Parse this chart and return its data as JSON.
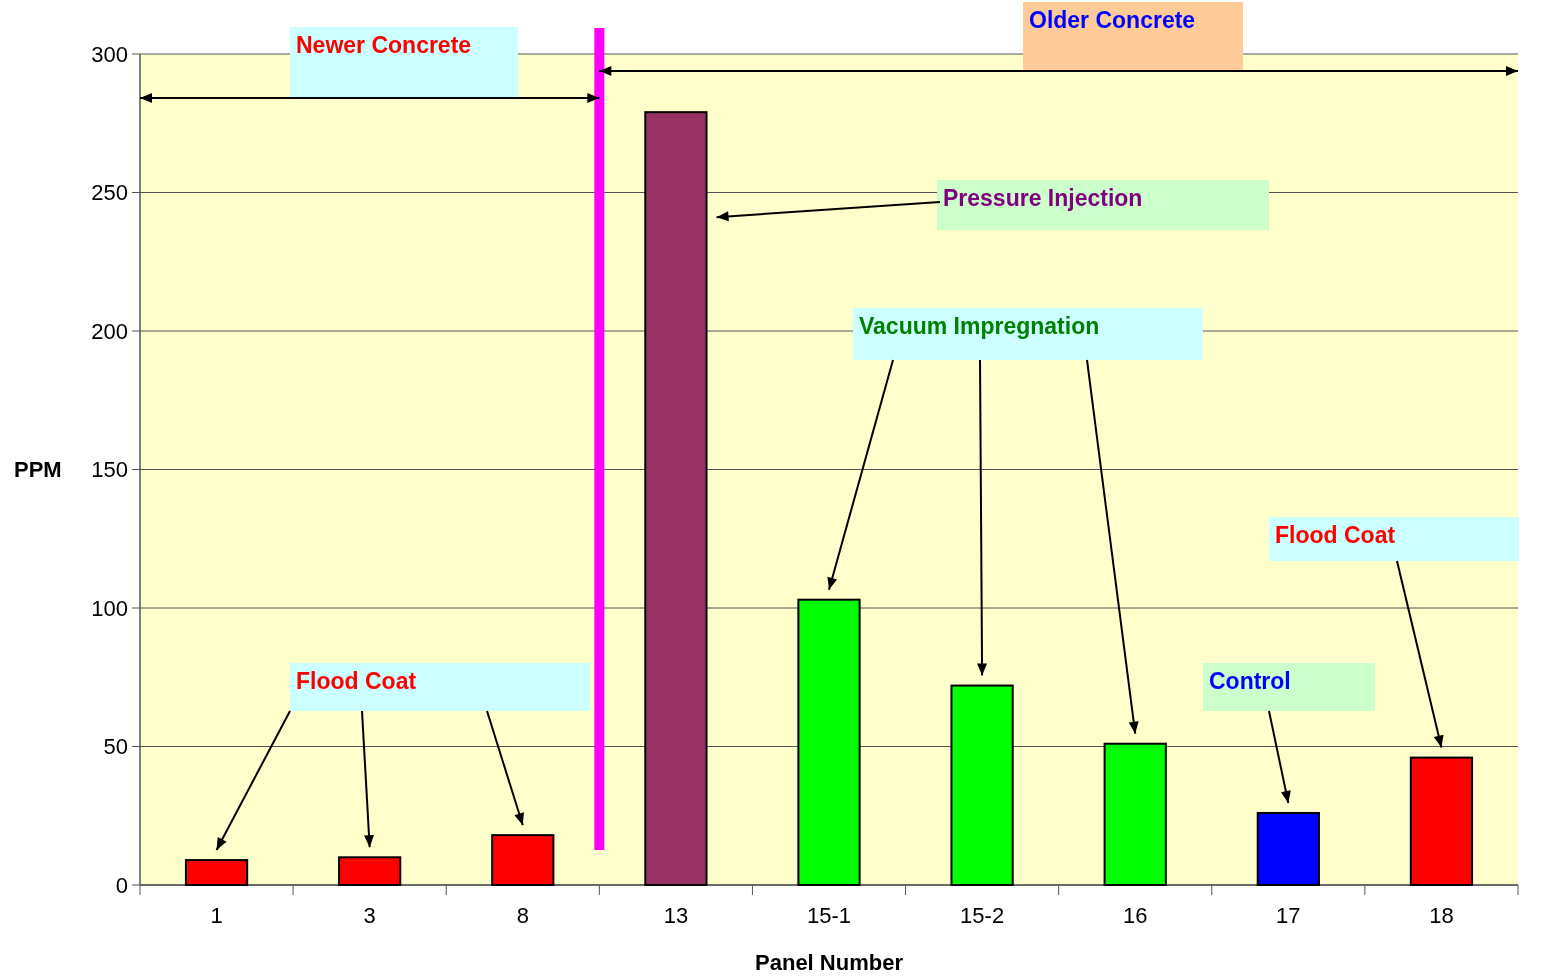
{
  "chart_data": {
    "type": "bar",
    "xlabel": "Panel Number",
    "ylabel": "PPM",
    "categories": [
      "1",
      "3",
      "8",
      "13",
      "15-1",
      "15-2",
      "16",
      "17",
      "18"
    ],
    "values": [
      9,
      10,
      18,
      279,
      103,
      72,
      51,
      26,
      46
    ],
    "colors": [
      "#ff0000",
      "#ff0000",
      "#ff0000",
      "#993366",
      "#00ff00",
      "#00ff00",
      "#00ff00",
      "#0000ff",
      "#ff0000"
    ],
    "ylim": [
      0,
      300
    ],
    "yticks": [
      0,
      50,
      100,
      150,
      200,
      250,
      300
    ],
    "grid": "y",
    "annotations": [
      "Newer Concrete",
      "Older Concrete",
      "Pressure Injection",
      "Vacuum Impregnation",
      "Flood Coat",
      "Control",
      "Flood Coat"
    ]
  }
}
